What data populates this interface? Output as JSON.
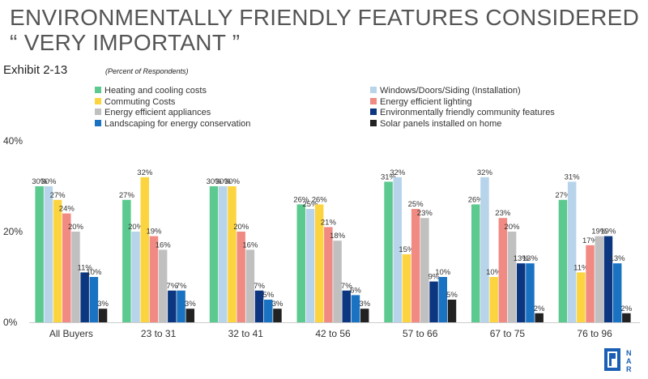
{
  "title": "ENVIRONMENTALLY FRIENDLY FEATURES CONSIDERED “ VERY IMPORTANT ”",
  "exhibit": "Exhibit 2-13",
  "subtitle": "(Percent of Respondents)",
  "logo_text": "NAR",
  "chart_data": {
    "type": "bar",
    "title": "ENVIRONMENTALLY FRIENDLY FEATURES CONSIDERED “ VERY IMPORTANT ”",
    "subtitle": "(Percent of Respondents)",
    "xlabel": "",
    "ylabel": "",
    "ylim": [
      0,
      40
    ],
    "yticks": [
      "0%",
      "20%",
      "40%"
    ],
    "ytick_values": [
      0,
      20,
      40
    ],
    "grid": false,
    "legend_position": "top",
    "categories": [
      "All Buyers",
      "23 to 31",
      "32 to 41",
      "42 to 56",
      "57 to 66",
      "67 to 75",
      "76 to 96"
    ],
    "series": [
      {
        "name": "Heating and cooling costs",
        "color": "#5cc98f",
        "values": [
          30,
          27,
          30,
          26,
          31,
          26,
          27
        ],
        "labels": [
          "30%",
          "27%",
          "30%",
          "26%",
          "31%",
          "26%",
          "27%"
        ]
      },
      {
        "name": "Windows/Doors/Siding (Installation)",
        "color": "#b8d4ea",
        "values": [
          30,
          20,
          30,
          25,
          32,
          32,
          31
        ],
        "labels": [
          "30%",
          "20%",
          "30%",
          "25%",
          "32%",
          "32%",
          "31%"
        ]
      },
      {
        "name": "Commuting Costs",
        "color": "#fcd440",
        "values": [
          27,
          32,
          30,
          26,
          15,
          10,
          11
        ],
        "labels": [
          "27%",
          "32%",
          "30%",
          "26%",
          "15%",
          "10%",
          "11%"
        ]
      },
      {
        "name": "Energy efficient lighting",
        "color": "#f08a82",
        "values": [
          24,
          19,
          20,
          21,
          25,
          23,
          17
        ],
        "labels": [
          "24%",
          "19%",
          "20%",
          "21%",
          "25%",
          "23%",
          "17%"
        ]
      },
      {
        "name": "Energy efficient appliances",
        "color": "#c0c0c0",
        "values": [
          20,
          16,
          16,
          18,
          23,
          20,
          19
        ],
        "labels": [
          "20%",
          "16%",
          "16%",
          "18%",
          "23%",
          "20%",
          "19%"
        ]
      },
      {
        "name": "Environmentally friendly community features",
        "color": "#0d3680",
        "values": [
          11,
          7,
          7,
          7,
          9,
          13,
          19
        ],
        "labels": [
          "11%",
          "7%",
          "7%",
          "7%",
          "9%",
          "13%",
          "19%"
        ]
      },
      {
        "name": "Landscaping for energy conservation",
        "color": "#1a72c2",
        "values": [
          10,
          7,
          5,
          6,
          10,
          13,
          13
        ],
        "labels": [
          "10%",
          "7%",
          "5%",
          "6%",
          "10%",
          "13%",
          "13%"
        ]
      },
      {
        "name": "Solar panels installed on home",
        "color": "#222222",
        "values": [
          3,
          3,
          3,
          3,
          5,
          2,
          2
        ],
        "labels": [
          "3%",
          "3%",
          "3%",
          "3%",
          "5%",
          "2%",
          "2%"
        ]
      }
    ]
  }
}
